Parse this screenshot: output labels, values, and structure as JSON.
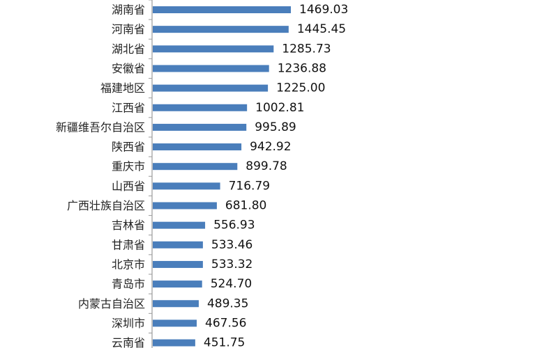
{
  "chart_data": {
    "type": "bar",
    "orientation": "horizontal",
    "categories": [
      "湖南省",
      "河南省",
      "湖北省",
      "安徽省",
      "福建地区",
      "江西省",
      "新疆维吾尔自治区",
      "陕西省",
      "重庆市",
      "山西省",
      "广西壮族自治区",
      "吉林省",
      "甘肃省",
      "北京市",
      "青岛市",
      "内蒙古自治区",
      "深圳市",
      "云南省"
    ],
    "values": [
      1469.03,
      1445.45,
      1285.73,
      1236.88,
      1225.0,
      1002.81,
      995.89,
      942.92,
      899.78,
      716.79,
      681.8,
      556.93,
      533.46,
      533.32,
      524.7,
      489.35,
      467.56,
      451.75
    ],
    "value_labels": [
      "1469.03",
      "1445.45",
      "1285.73",
      "1236.88",
      "1225.00",
      "1002.81",
      "995.89",
      "942.92",
      "899.78",
      "716.79",
      "681.80",
      "556.93",
      "533.46",
      "533.32",
      "524.70",
      "489.35",
      "467.56",
      "451.75"
    ],
    "title": "",
    "xlabel": "",
    "ylabel": "",
    "grid": false,
    "legend": "none",
    "bar_color": "#4a7ebb",
    "axis_color": "#9a9a9a"
  }
}
